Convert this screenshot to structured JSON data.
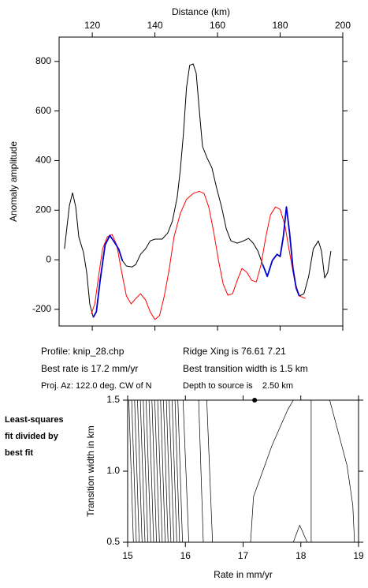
{
  "chart_data": [
    {
      "type": "line",
      "x_label": "Distance (km)",
      "y_label": "Anomaly amplitude",
      "xlim": [
        109.4,
        200
      ],
      "xticks": [
        120,
        140,
        160,
        180,
        200
      ],
      "ylim": [
        -267,
        898
      ],
      "yticks": [
        -200,
        0,
        200,
        400,
        600,
        800
      ],
      "x": [
        111.1,
        112.7,
        113.7,
        114.7,
        115.7,
        117.2,
        118.2,
        119.2,
        120.3,
        121.3,
        122.5,
        124.1,
        125.6,
        126.8,
        128.4,
        129.6,
        130.9,
        132.7,
        133.9,
        135.4,
        137.0,
        138.5,
        140.0,
        142.3,
        144.1,
        145.6,
        147.1,
        148.1,
        149.1,
        150.1,
        151.1,
        152.2,
        153.2,
        154.2,
        155.2,
        156.7,
        158.2,
        159.7,
        161.3,
        162.8,
        164.3,
        166.3,
        168.3,
        169.9,
        171.4,
        172.9,
        174.4,
        175.9,
        177.5,
        179.0,
        180.0,
        181.0,
        182.0,
        183.0,
        184.1,
        185.1,
        186.1,
        187.6,
        189.1,
        190.6,
        192.2,
        193.2,
        194.2,
        195.2,
        196.2
      ],
      "series": [
        {
          "color": "#000000",
          "values": [
            44,
            219,
            270,
            213,
            92,
            29,
            -51,
            -178,
            -232,
            -210,
            -83,
            60,
            98,
            76,
            44,
            -3,
            -25,
            -29,
            -19,
            22,
            44,
            76,
            83,
            83,
            108,
            156,
            251,
            362,
            505,
            695,
            784,
            790,
            752,
            600,
            457,
            410,
            371,
            289,
            213,
            124,
            76,
            67,
            76,
            86,
            67,
            35,
            -19,
            -67,
            -3,
            22,
            13,
            92,
            213,
            108,
            -35,
            -114,
            -146,
            -137,
            -67,
            44,
            76,
            35,
            -73,
            -51,
            35
          ]
        },
        {
          "color": "#ff0000",
          "x": [
            119.7,
            120.8,
            122.0,
            123.3,
            124.8,
            126.3,
            127.8,
            129.4,
            130.9,
            132.4,
            133.9,
            135.4,
            137.0,
            138.5,
            140.0,
            141.5,
            143.0,
            144.6,
            146.1,
            148.1,
            150.1,
            152.2,
            154.2,
            155.7,
            157.2,
            158.7,
            160.3,
            161.8,
            163.3,
            164.8,
            166.3,
            167.8,
            169.4,
            170.9,
            172.4,
            173.9,
            175.4,
            176.9,
            178.5,
            180.0,
            181.5,
            183.0,
            184.6,
            186.1,
            188.1
          ],
          "values": [
            -219,
            -178,
            -67,
            44,
            92,
            102,
            60,
            -51,
            -146,
            -178,
            -156,
            -137,
            -162,
            -210,
            -241,
            -225,
            -146,
            -35,
            92,
            187,
            244,
            267,
            276,
            267,
            213,
            117,
            -3,
            -98,
            -143,
            -137,
            -83,
            -35,
            -51,
            -83,
            -89,
            -19,
            92,
            181,
            213,
            203,
            140,
            29,
            -83,
            -146,
            -156
          ]
        },
        {
          "color": "#0000cc",
          "values": [
            null,
            null,
            null,
            null,
            null,
            null,
            null,
            null,
            -232,
            -210,
            -83,
            60,
            98,
            76,
            44,
            -3,
            null,
            null,
            null,
            null,
            null,
            null,
            null,
            null,
            null,
            null,
            null,
            null,
            null,
            null,
            null,
            null,
            null,
            null,
            null,
            null,
            null,
            null,
            null,
            null,
            null,
            null,
            null,
            null,
            null,
            null,
            -19,
            -67,
            -3,
            22,
            13,
            92,
            213,
            108,
            -35,
            -114,
            -146,
            null,
            null,
            null,
            null,
            null,
            null,
            null,
            null
          ]
        }
      ]
    },
    {
      "type": "contour",
      "x_label": "Rate in mm/yr",
      "y_label": "Transition width in km",
      "side_label": [
        "Least-squares",
        "fit divided by",
        "best fit"
      ],
      "xlim": [
        15,
        19
      ],
      "xticks": [
        15,
        16,
        17,
        18,
        19
      ],
      "ylim": [
        0.5,
        1.5
      ],
      "yticks": [
        0.5,
        {
          "value": 1.0,
          "label": "1.0"
        },
        1.5
      ],
      "best": {
        "x": 17.2,
        "y": 1.5
      },
      "contours": [
        {
          "x": [
            15.1,
            15.02
          ],
          "y": [
            0.5,
            1.5
          ]
        },
        {
          "x": [
            15.15,
            15.07
          ],
          "y": [
            0.5,
            1.5
          ]
        },
        {
          "x": [
            15.2,
            15.12
          ],
          "y": [
            0.5,
            1.5
          ]
        },
        {
          "x": [
            15.25,
            15.17
          ],
          "y": [
            0.5,
            1.5
          ]
        },
        {
          "x": [
            15.3,
            15.22
          ],
          "y": [
            0.5,
            1.5
          ]
        },
        {
          "x": [
            15.35,
            15.27
          ],
          "y": [
            0.5,
            1.5
          ]
        },
        {
          "x": [
            15.4,
            15.32
          ],
          "y": [
            0.5,
            1.5
          ]
        },
        {
          "x": [
            15.45,
            15.37
          ],
          "y": [
            0.5,
            1.5
          ]
        },
        {
          "x": [
            15.5,
            15.42
          ],
          "y": [
            0.5,
            1.5
          ]
        },
        {
          "x": [
            15.55,
            15.47
          ],
          "y": [
            0.5,
            1.5
          ]
        },
        {
          "x": [
            15.6,
            15.52
          ],
          "y": [
            0.5,
            1.5
          ]
        },
        {
          "x": [
            15.65,
            15.57
          ],
          "y": [
            0.5,
            1.5
          ]
        },
        {
          "x": [
            15.7,
            15.62
          ],
          "y": [
            0.5,
            1.5
          ]
        },
        {
          "x": [
            15.75,
            15.67
          ],
          "y": [
            0.5,
            1.5
          ]
        },
        {
          "x": [
            15.8,
            15.72
          ],
          "y": [
            0.5,
            1.5
          ]
        },
        {
          "x": [
            15.85,
            15.77
          ],
          "y": [
            0.5,
            1.5
          ]
        },
        {
          "x": [
            15.9,
            15.82
          ],
          "y": [
            0.5,
            1.5
          ]
        },
        {
          "x": [
            15.95,
            15.87
          ],
          "y": [
            0.5,
            1.5
          ]
        },
        {
          "x": [
            16.06,
            15.96
          ],
          "y": [
            0.5,
            1.5
          ]
        },
        {
          "x": [
            16.31,
            16.23
          ],
          "y": [
            0.5,
            1.5
          ]
        },
        {
          "x": [
            16.47,
            16.37
          ],
          "y": [
            0.5,
            1.5
          ]
        },
        {
          "x": [
            17.13,
            17.18,
            17.5,
            17.77,
            17.87
          ],
          "y": [
            0.5,
            0.82,
            1.18,
            1.43,
            1.5
          ]
        },
        {
          "x": [
            18.18,
            18.18
          ],
          "y": [
            0.5,
            1.5
          ]
        },
        {
          "x": [
            18.93,
            18.9,
            18.8,
            18.69,
            18.5
          ],
          "y": [
            0.5,
            0.76,
            1.04,
            1.21,
            1.5
          ]
        },
        {
          "x": [
            17.87,
            17.98,
            18.11
          ],
          "y": [
            0.5,
            0.62,
            0.5
          ]
        }
      ]
    }
  ],
  "info": [
    "Profile: knip_28.chp",
    "Ridge Xing is 76.61 7.21",
    "Best rate is 17.2 mm/yr",
    "Best transition width is 1.5 km",
    "Proj. Az: 122.0 deg. CW of N",
    "Depth to source is    2.50 km"
  ]
}
